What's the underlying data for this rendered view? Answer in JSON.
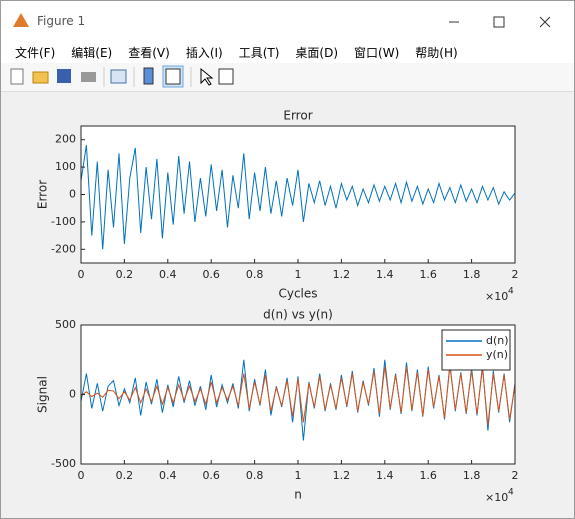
{
  "window": {
    "title": "Figure 1"
  },
  "menu": [
    "文件(F)",
    "编辑(E)",
    "查看(V)",
    "插入(I)",
    "工具(T)",
    "桌面(D)",
    "窗口(W)",
    "帮助(H)"
  ],
  "chart_data": [
    {
      "type": "line",
      "title": "Error",
      "xlabel": "Cycles",
      "ylabel": "Error",
      "x": [
        0,
        250,
        500,
        750,
        1000,
        1250,
        1500,
        1750,
        2000,
        2250,
        2500,
        2750,
        3000,
        3250,
        3500,
        3750,
        4000,
        4250,
        4500,
        4750,
        5000,
        5250,
        5500,
        5750,
        6000,
        6250,
        6500,
        6750,
        7000,
        7250,
        7500,
        7750,
        8000,
        8250,
        8500,
        8750,
        9000,
        9250,
        9500,
        9750,
        10000,
        10250,
        10500,
        10750,
        11000,
        11250,
        11500,
        11750,
        12000,
        12250,
        12500,
        12750,
        13000,
        13250,
        13500,
        13750,
        14000,
        14250,
        14500,
        14750,
        15000,
        15250,
        15500,
        15750,
        16000,
        16250,
        16500,
        16750,
        17000,
        17250,
        17500,
        17750,
        18000,
        18250,
        18500,
        18750,
        19000,
        19250,
        19500,
        19750,
        20000
      ],
      "series": [
        {
          "color": "#0072bd",
          "values": [
            50,
            180,
            -150,
            120,
            -200,
            90,
            -120,
            150,
            -180,
            60,
            170,
            -140,
            100,
            -90,
            130,
            -160,
            80,
            -110,
            140,
            -70,
            120,
            -100,
            60,
            -80,
            110,
            -60,
            90,
            -120,
            70,
            -50,
            150,
            -90,
            80,
            -60,
            100,
            -70,
            50,
            -80,
            60,
            -40,
            90,
            -100,
            40,
            -30,
            50,
            -40,
            30,
            -50,
            40,
            -20,
            30,
            -40,
            20,
            -30,
            35,
            -25,
            30,
            -20,
            40,
            -30,
            45,
            -25,
            30,
            -35,
            20,
            -30,
            40,
            -20,
            25,
            -30,
            35,
            -25,
            20,
            -30,
            30,
            -20,
            25,
            -35,
            10,
            -20,
            5
          ]
        }
      ],
      "xlim": [
        0,
        20000
      ],
      "xticks": [
        0,
        {
          "value": 2000,
          "label": "0.2"
        },
        {
          "value": 4000,
          "label": "0.4"
        },
        {
          "value": 6000,
          "label": "0.6"
        },
        {
          "value": 8000,
          "label": "0.8"
        },
        {
          "value": 10000,
          "label": "1"
        },
        {
          "value": 12000,
          "label": "1.2"
        },
        {
          "value": 14000,
          "label": "1.4"
        },
        {
          "value": 16000,
          "label": "1.6"
        },
        {
          "value": 18000,
          "label": "1.8"
        },
        {
          "value": 20000,
          "label": "2"
        }
      ],
      "x_exponent": {
        "base": "×10",
        "power": "4"
      },
      "ylim": [
        -250,
        250
      ],
      "yticks": [
        -200,
        -100,
        0,
        100,
        200
      ]
    },
    {
      "type": "line",
      "title": "d(n) vs y(n)",
      "xlabel": "n",
      "ylabel": "Signal",
      "legend": "northeast",
      "x": [
        0,
        250,
        500,
        750,
        1000,
        1250,
        1500,
        1750,
        2000,
        2250,
        2500,
        2750,
        3000,
        3250,
        3500,
        3750,
        4000,
        4250,
        4500,
        4750,
        5000,
        5250,
        5500,
        5750,
        6000,
        6250,
        6500,
        6750,
        7000,
        7250,
        7500,
        7750,
        8000,
        8250,
        8500,
        8750,
        9000,
        9250,
        9500,
        9750,
        10000,
        10250,
        10500,
        10750,
        11000,
        11250,
        11500,
        11750,
        12000,
        12250,
        12500,
        12750,
        13000,
        13250,
        13500,
        13750,
        14000,
        14250,
        14500,
        14750,
        15000,
        15250,
        15500,
        15750,
        16000,
        16250,
        16500,
        16750,
        17000,
        17250,
        17500,
        17750,
        18000,
        18250,
        18500,
        18750,
        19000,
        19250,
        19500,
        19750,
        20000
      ],
      "series": [
        {
          "name": "d(n)",
          "color": "#0072bd",
          "values": [
            -50,
            150,
            -100,
            80,
            -120,
            60,
            100,
            -80,
            40,
            -60,
            120,
            -150,
            90,
            -70,
            110,
            -130,
            70,
            -90,
            130,
            -60,
            100,
            -80,
            60,
            -110,
            140,
            -90,
            70,
            -60,
            80,
            -100,
            250,
            -120,
            110,
            -80,
            180,
            -150,
            60,
            -90,
            120,
            -200,
            130,
            -330,
            90,
            -100,
            150,
            -120,
            80,
            -110,
            140,
            -90,
            170,
            -130,
            100,
            -80,
            190,
            -160,
            250,
            -110,
            150,
            -140,
            230,
            -120,
            180,
            -160,
            200,
            -100,
            140,
            -180,
            220,
            -120,
            160,
            -140,
            190,
            -150,
            210,
            -260,
            170,
            -130,
            150,
            -200,
            80
          ]
        },
        {
          "name": "y(n)",
          "color": "#d95319",
          "values": [
            -10,
            20,
            -15,
            10,
            -20,
            30,
            25,
            -30,
            20,
            -40,
            50,
            -60,
            40,
            -50,
            60,
            -70,
            50,
            -60,
            70,
            -40,
            60,
            -50,
            40,
            -70,
            90,
            -60,
            50,
            -40,
            60,
            -80,
            150,
            -100,
            90,
            -70,
            140,
            -120,
            50,
            -80,
            100,
            -160,
            110,
            -200,
            80,
            -90,
            130,
            -110,
            70,
            -100,
            120,
            -80,
            150,
            -120,
            90,
            -70,
            170,
            -140,
            200,
            -100,
            140,
            -130,
            200,
            -110,
            160,
            -150,
            180,
            -90,
            130,
            -170,
            200,
            -110,
            150,
            -130,
            170,
            -140,
            190,
            -220,
            150,
            -120,
            140,
            -180,
            70
          ]
        }
      ],
      "xlim": [
        0,
        20000
      ],
      "xticks": [
        0,
        {
          "value": 2000,
          "label": "0.2"
        },
        {
          "value": 4000,
          "label": "0.4"
        },
        {
          "value": 6000,
          "label": "0.6"
        },
        {
          "value": 8000,
          "label": "0.8"
        },
        {
          "value": 10000,
          "label": "1"
        },
        {
          "value": 12000,
          "label": "1.2"
        },
        {
          "value": 14000,
          "label": "1.4"
        },
        {
          "value": 16000,
          "label": "1.6"
        },
        {
          "value": 18000,
          "label": "1.8"
        },
        {
          "value": 20000,
          "label": "2"
        }
      ],
      "x_exponent": {
        "base": "×10",
        "power": "4"
      },
      "ylim": [
        -500,
        500
      ],
      "yticks": [
        -500,
        0,
        500
      ]
    }
  ]
}
